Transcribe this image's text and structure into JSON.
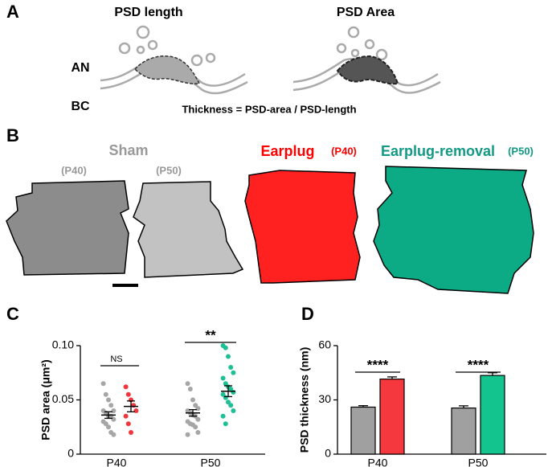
{
  "panel_labels": [
    "A",
    "B",
    "C",
    "D"
  ],
  "diagram_a": {
    "left_title": "PSD length",
    "right_title": "PSD Area",
    "an": "AN",
    "bc": "BC",
    "formula": "Thickness = PSD-area / PSD-length"
  },
  "diagram_b": {
    "sham": "Sham",
    "sham_p40": "(P40)",
    "sham_p50": "(P50)",
    "earplug": "Earplug",
    "earplug_age": "(P40)",
    "removal": "Earplug-removal",
    "removal_age": "(P50)"
  },
  "chart_data": [
    {
      "type": "scatter",
      "ylabel": "PSD area (μm²)",
      "categories": [
        "P40",
        "P50"
      ],
      "ylim": [
        0,
        0.1
      ],
      "yticks": [
        0,
        0.05,
        {
          "value": 0.1,
          "label": "0.10"
        }
      ],
      "annotations": [
        "NS",
        "**"
      ],
      "series": [
        {
          "color": "#a6a6a6",
          "values": [
            [
              0.065,
              0.055,
              0.05,
              0.045,
              0.04,
              0.04,
              0.038,
              0.035,
              0.035,
              0.032,
              0.03,
              0.028,
              0.025,
              0.02,
              0.018
            ],
            [
              0.065,
              0.06,
              0.05,
              0.045,
              0.042,
              0.04,
              0.038,
              0.036,
              0.035,
              0.032,
              0.03,
              0.028,
              0.027,
              0.025,
              0.02,
              0.018
            ]
          ],
          "mean": [
            0.036,
            0.038
          ],
          "sem": [
            0.003,
            0.003
          ]
        },
        {
          "color": "#f0373c",
          "values": [
            [
              0.062,
              0.055,
              0.05,
              0.045,
              0.04,
              0.035,
              0.028,
              0.02
            ],
            null
          ],
          "mean": [
            0.044,
            null
          ],
          "sem": [
            0.005,
            null
          ]
        },
        {
          "color": "#1dbf94",
          "values": [
            null,
            [
              0.1,
              0.098,
              0.09,
              0.08,
              0.075,
              0.07,
              0.065,
              0.062,
              0.06,
              0.057,
              0.055,
              0.052,
              0.048,
              0.045,
              0.04,
              0.035,
              0.028
            ]
          ],
          "mean": [
            null,
            0.058
          ],
          "sem": [
            null,
            0.005
          ]
        }
      ]
    },
    {
      "type": "bar",
      "ylabel": "PSD thickness (nm)",
      "categories": [
        "P40",
        "P50"
      ],
      "ylim": [
        0,
        60
      ],
      "yticks": [
        0,
        30,
        60
      ],
      "annotations": [
        "****",
        "****"
      ],
      "series": [
        {
          "color": "#a0a0a0",
          "values": [
            26,
            25.5
          ],
          "errors": [
            0.8,
            1.2
          ]
        },
        {
          "color": "#f5383d",
          "values": [
            41.5,
            null
          ],
          "errors": [
            1.2,
            null
          ]
        },
        {
          "color": "#13c48f",
          "values": [
            null,
            43.5
          ],
          "errors": [
            null,
            1.5
          ]
        }
      ]
    }
  ]
}
